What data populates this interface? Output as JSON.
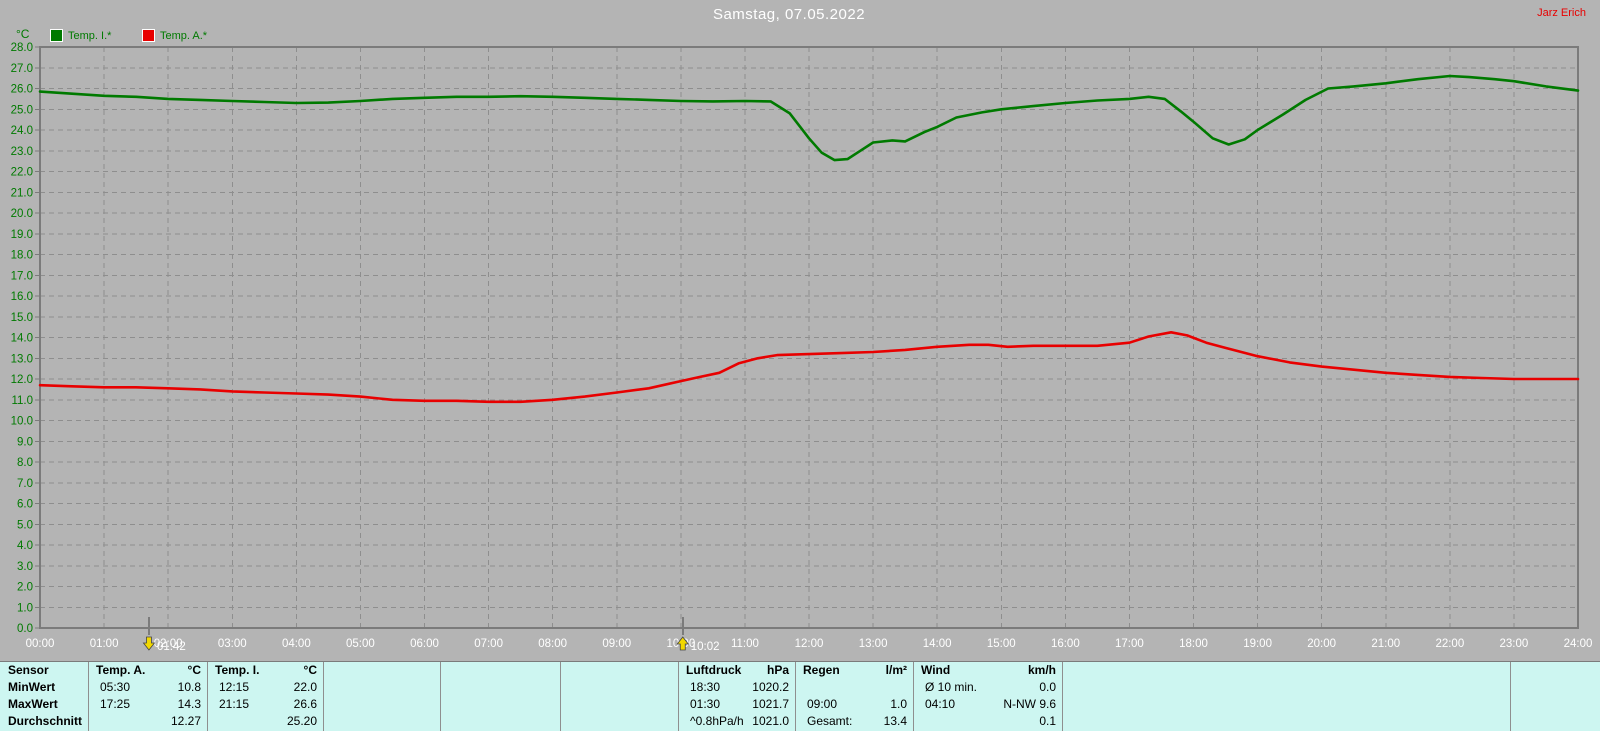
{
  "header": {
    "title": "Samstag, 07.05.2022",
    "author": "Jarz Erich"
  },
  "legend": {
    "unit": "°C",
    "items": [
      {
        "label": "Temp. I.*",
        "color": "#007a00"
      },
      {
        "label": "Temp. A.*",
        "color": "#e80000"
      }
    ]
  },
  "chart_data": {
    "type": "line",
    "title": "Samstag, 07.05.2022",
    "ylabel": "°C",
    "ylim": [
      0,
      28
    ],
    "xlim_hours": [
      0,
      24
    ],
    "grid": "dashed",
    "legend_position": "top-left",
    "y_ticks": [
      "28.0",
      "27.0",
      "26.0",
      "25.0",
      "24.0",
      "23.0",
      "22.0",
      "21.0",
      "20.0",
      "19.0",
      "18.0",
      "17.0",
      "16.0",
      "15.0",
      "14.0",
      "13.0",
      "12.0",
      "11.0",
      "10.0",
      "9.0",
      "8.0",
      "7.0",
      "6.0",
      "5.0",
      "4.0",
      "3.0",
      "2.0",
      "1.0",
      "0.0"
    ],
    "x_ticks": [
      "00:00",
      "01:00",
      "02:00",
      "03:00",
      "04:00",
      "05:00",
      "06:00",
      "07:00",
      "08:00",
      "09:00",
      "10:00",
      "11:00",
      "12:00",
      "13:00",
      "14:00",
      "15:00",
      "16:00",
      "17:00",
      "18:00",
      "19:00",
      "20:00",
      "21:00",
      "22:00",
      "23:00",
      "24:00"
    ],
    "series": [
      {
        "name": "Temp. I.*",
        "color": "#007a00",
        "points": [
          [
            0,
            25.85
          ],
          [
            0.5,
            25.75
          ],
          [
            1,
            25.65
          ],
          [
            1.5,
            25.6
          ],
          [
            2,
            25.5
          ],
          [
            2.5,
            25.45
          ],
          [
            3,
            25.4
          ],
          [
            3.5,
            25.35
          ],
          [
            4,
            25.3
          ],
          [
            4.5,
            25.32
          ],
          [
            5,
            25.4
          ],
          [
            5.5,
            25.5
          ],
          [
            6,
            25.55
          ],
          [
            6.5,
            25.6
          ],
          [
            7,
            25.6
          ],
          [
            7.5,
            25.63
          ],
          [
            8,
            25.6
          ],
          [
            8.5,
            25.55
          ],
          [
            9,
            25.5
          ],
          [
            9.5,
            25.45
          ],
          [
            10,
            25.4
          ],
          [
            10.5,
            25.38
          ],
          [
            11,
            25.4
          ],
          [
            11.4,
            25.38
          ],
          [
            11.7,
            24.8
          ],
          [
            12,
            23.6
          ],
          [
            12.2,
            22.9
          ],
          [
            12.4,
            22.55
          ],
          [
            12.6,
            22.6
          ],
          [
            12.8,
            23.0
          ],
          [
            13,
            23.4
          ],
          [
            13.3,
            23.5
          ],
          [
            13.5,
            23.45
          ],
          [
            13.8,
            23.9
          ],
          [
            14,
            24.15
          ],
          [
            14.3,
            24.6
          ],
          [
            14.7,
            24.85
          ],
          [
            15,
            25.0
          ],
          [
            15.5,
            25.15
          ],
          [
            16,
            25.3
          ],
          [
            16.5,
            25.42
          ],
          [
            17,
            25.5
          ],
          [
            17.3,
            25.6
          ],
          [
            17.55,
            25.5
          ],
          [
            17.8,
            24.9
          ],
          [
            18,
            24.4
          ],
          [
            18.3,
            23.6
          ],
          [
            18.55,
            23.3
          ],
          [
            18.8,
            23.55
          ],
          [
            19,
            24.0
          ],
          [
            19.4,
            24.75
          ],
          [
            19.75,
            25.45
          ],
          [
            20.1,
            26.0
          ],
          [
            20.5,
            26.1
          ],
          [
            21,
            26.25
          ],
          [
            21.5,
            26.45
          ],
          [
            22,
            26.6
          ],
          [
            22.3,
            26.55
          ],
          [
            22.7,
            26.45
          ],
          [
            23,
            26.35
          ],
          [
            23.5,
            26.1
          ],
          [
            24,
            25.9
          ]
        ]
      },
      {
        "name": "Temp. A.*",
        "color": "#e80000",
        "points": [
          [
            0,
            11.7
          ],
          [
            0.5,
            11.65
          ],
          [
            1,
            11.6
          ],
          [
            1.5,
            11.6
          ],
          [
            2,
            11.55
          ],
          [
            2.5,
            11.5
          ],
          [
            3,
            11.4
          ],
          [
            3.5,
            11.35
          ],
          [
            4,
            11.3
          ],
          [
            4.5,
            11.25
          ],
          [
            5,
            11.15
          ],
          [
            5.5,
            11.0
          ],
          [
            6,
            10.95
          ],
          [
            6.5,
            10.95
          ],
          [
            7,
            10.9
          ],
          [
            7.5,
            10.9
          ],
          [
            8,
            11.0
          ],
          [
            8.5,
            11.15
          ],
          [
            9,
            11.35
          ],
          [
            9.5,
            11.55
          ],
          [
            10,
            11.9
          ],
          [
            10.3,
            12.1
          ],
          [
            10.6,
            12.3
          ],
          [
            10.9,
            12.75
          ],
          [
            11.2,
            13.0
          ],
          [
            11.5,
            13.15
          ],
          [
            12,
            13.2
          ],
          [
            12.5,
            13.25
          ],
          [
            13,
            13.3
          ],
          [
            13.5,
            13.4
          ],
          [
            14,
            13.55
          ],
          [
            14.5,
            13.65
          ],
          [
            14.8,
            13.65
          ],
          [
            15.1,
            13.55
          ],
          [
            15.5,
            13.6
          ],
          [
            16,
            13.6
          ],
          [
            16.5,
            13.6
          ],
          [
            17,
            13.75
          ],
          [
            17.3,
            14.05
          ],
          [
            17.65,
            14.25
          ],
          [
            17.9,
            14.1
          ],
          [
            18.2,
            13.75
          ],
          [
            18.5,
            13.5
          ],
          [
            19,
            13.1
          ],
          [
            19.5,
            12.8
          ],
          [
            20,
            12.6
          ],
          [
            20.5,
            12.45
          ],
          [
            21,
            12.3
          ],
          [
            21.5,
            12.2
          ],
          [
            22,
            12.1
          ],
          [
            22.5,
            12.05
          ],
          [
            23,
            12.0
          ],
          [
            23.5,
            12.0
          ],
          [
            24,
            12.0
          ]
        ]
      }
    ],
    "axis_markers": [
      {
        "label": "01:42",
        "hour": 1.7,
        "arrow": "down"
      },
      {
        "label": "10:02",
        "hour": 10.03,
        "arrow": "up"
      }
    ]
  },
  "table": {
    "row_labels": [
      "Sensor",
      "MinWert",
      "MaxWert",
      "Durchschnitt"
    ],
    "groups": [
      {
        "name": "Temp. A.",
        "unit": "°C",
        "rows": [
          [
            "05:30",
            "10.8"
          ],
          [
            "17:25",
            "14.3"
          ],
          [
            "",
            "12.27"
          ]
        ]
      },
      {
        "name": "Temp. I.",
        "unit": "°C",
        "rows": [
          [
            "12:15",
            "22.0"
          ],
          [
            "21:15",
            "26.6"
          ],
          [
            "",
            "25.20"
          ]
        ]
      },
      {
        "name": "",
        "unit": "",
        "rows": [
          [
            "",
            ""
          ],
          [
            "",
            ""
          ],
          [
            "",
            ""
          ]
        ]
      },
      {
        "name": "",
        "unit": "",
        "rows": [
          [
            "",
            ""
          ],
          [
            "",
            ""
          ],
          [
            "",
            ""
          ]
        ]
      },
      {
        "name": "",
        "unit": "",
        "rows": [
          [
            "",
            ""
          ],
          [
            "",
            ""
          ],
          [
            "",
            ""
          ]
        ]
      },
      {
        "name": "Luftdruck",
        "unit": "hPa",
        "rows": [
          [
            "18:30",
            "1020.2"
          ],
          [
            "01:30",
            "1021.7"
          ],
          [
            "^0.8hPa/h",
            "1021.0"
          ]
        ]
      },
      {
        "name": "Regen",
        "unit": "l/m²",
        "rows": [
          [
            "",
            ""
          ],
          [
            "09:00",
            "1.0"
          ],
          [
            "Gesamt:",
            "13.4"
          ]
        ]
      },
      {
        "name": "Wind",
        "unit": "km/h",
        "rows": [
          [
            "Ø 10 min.",
            "0.0"
          ],
          [
            "04:10",
            "N-NW 9.6"
          ],
          [
            "",
            "0.1"
          ]
        ]
      },
      {
        "name": "",
        "unit": "",
        "rows": [
          [
            "",
            ""
          ],
          [
            "",
            ""
          ],
          [
            "",
            ""
          ]
        ]
      },
      {
        "name": "",
        "unit": "",
        "rows": [
          [
            "",
            ""
          ],
          [
            "",
            ""
          ],
          [
            "",
            ""
          ]
        ]
      }
    ]
  }
}
